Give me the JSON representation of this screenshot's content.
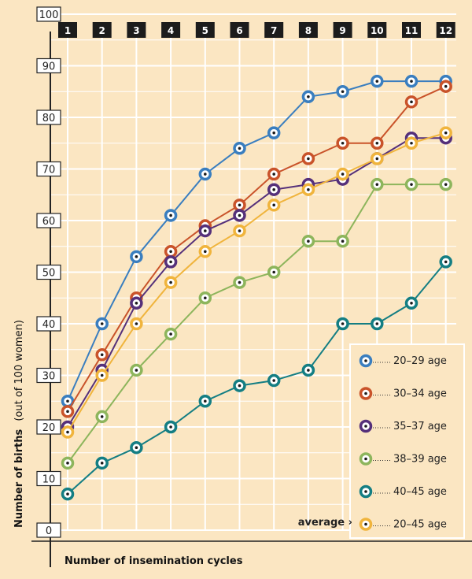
{
  "chart_data": {
    "type": "line",
    "xlabel": "Number of insemination cycles",
    "ylabel": "Number of births",
    "ylabel_note": "(out of 100 women)",
    "x": [
      1,
      2,
      3,
      4,
      5,
      6,
      7,
      8,
      9,
      10,
      11,
      12
    ],
    "x_tick_labels": [
      "1",
      "2",
      "3",
      "4",
      "5",
      "6",
      "7",
      "8",
      "9",
      "10",
      "11",
      "12"
    ],
    "y_tick_labels": [
      "0",
      "10",
      "20",
      "30",
      "40",
      "50",
      "60",
      "70",
      "80",
      "90",
      "100"
    ],
    "ylim": [
      0,
      100
    ],
    "grid": true,
    "legend_position": "bottom-right",
    "average_label": "average ›",
    "series": [
      {
        "name": "20–29 age",
        "color": "#3a7ebf",
        "values": [
          25,
          40,
          53,
          61,
          69,
          74,
          77,
          84,
          85,
          87,
          87,
          87
        ]
      },
      {
        "name": "30–34 age",
        "color": "#c9532a",
        "values": [
          23,
          34,
          45,
          54,
          59,
          63,
          69,
          72,
          75,
          75,
          83,
          86
        ]
      },
      {
        "name": "35–37 age",
        "color": "#55307a",
        "values": [
          20,
          31,
          44,
          52,
          58,
          61,
          66,
          67,
          68,
          72,
          76,
          76
        ]
      },
      {
        "name": "38–39 age",
        "color": "#8db55c",
        "values": [
          13,
          22,
          31,
          38,
          45,
          48,
          50,
          56,
          56,
          67,
          67,
          67
        ]
      },
      {
        "name": "40–45 age",
        "color": "#147e83",
        "values": [
          7,
          13,
          16,
          20,
          25,
          28,
          29,
          31,
          40,
          40,
          44,
          52
        ]
      },
      {
        "name": "20–45 age",
        "color": "#f0b43c",
        "values": [
          19,
          30,
          40,
          48,
          54,
          58,
          63,
          66,
          69,
          72,
          75,
          77
        ]
      }
    ]
  }
}
